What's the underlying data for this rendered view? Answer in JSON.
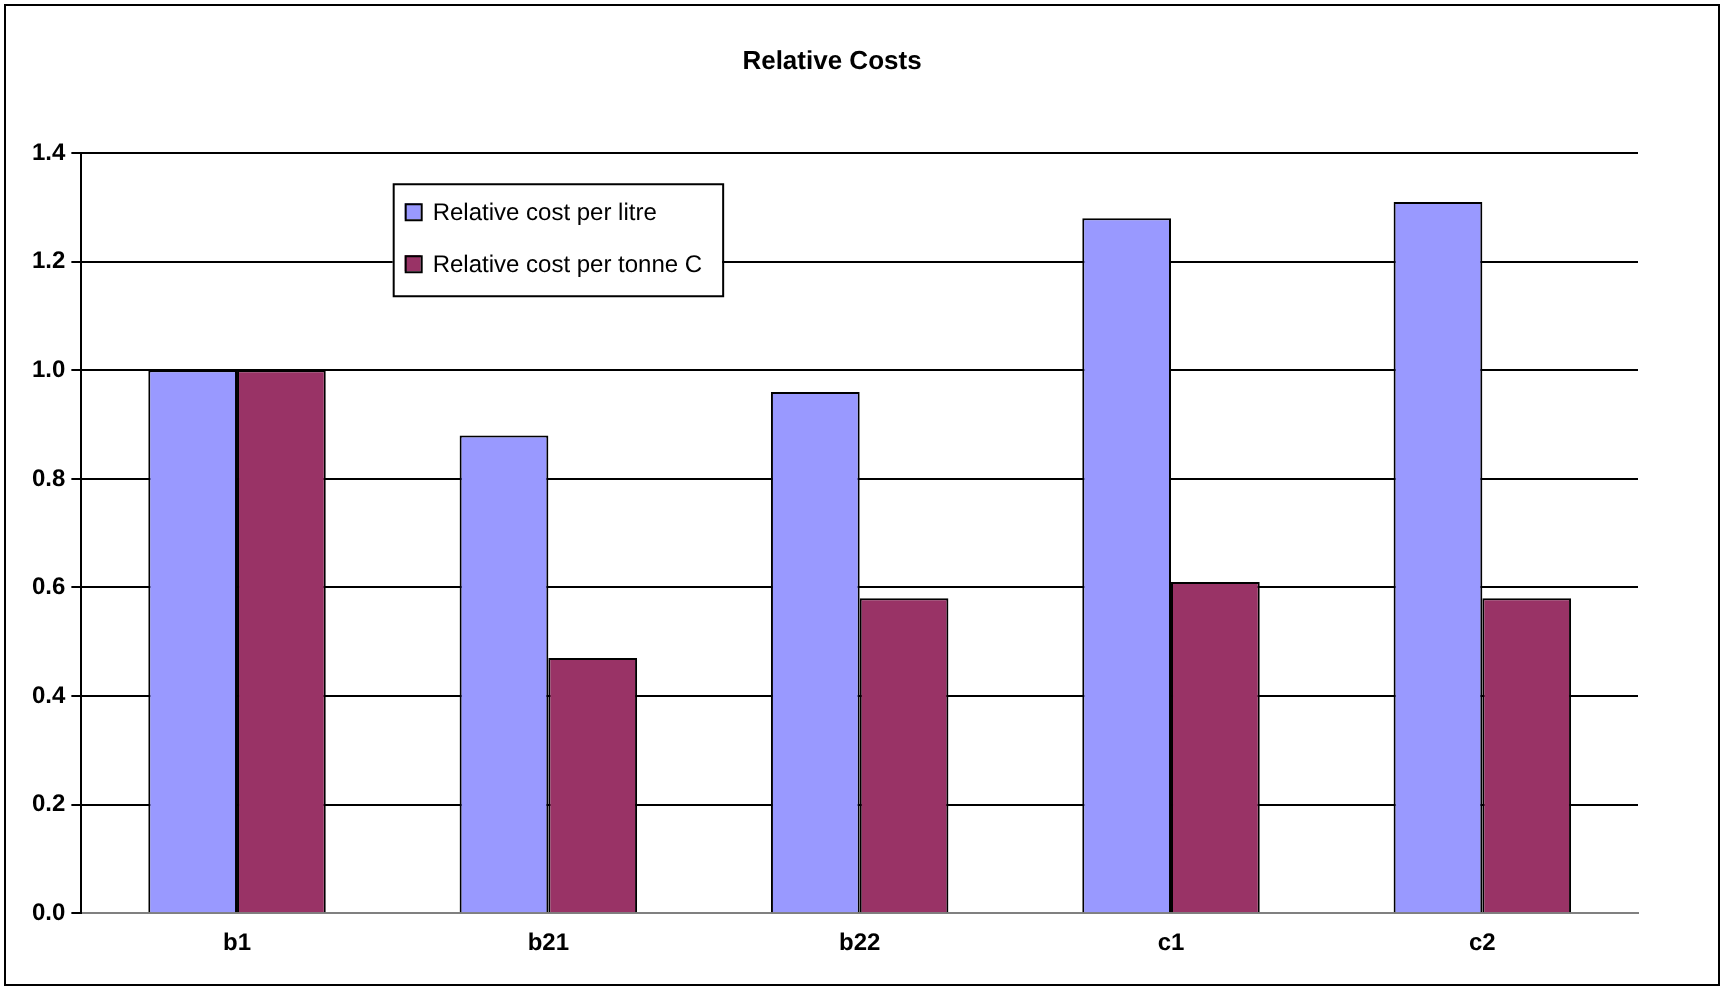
{
  "chart_data": {
    "type": "bar",
    "title": "Relative Costs",
    "categories": [
      "b1",
      "b21",
      "b22",
      "c1",
      "c2"
    ],
    "series": [
      {
        "name": "Relative cost per litre",
        "color": "#9999ff",
        "values": [
          1.0,
          0.88,
          0.96,
          1.28,
          1.31
        ]
      },
      {
        "name": "Relative cost per tonne C",
        "color": "#993366",
        "values": [
          1.0,
          0.47,
          0.58,
          0.61,
          0.58
        ]
      }
    ],
    "ylim": [
      0,
      1.4
    ],
    "yticks": [
      {
        "value": 0,
        "label": "0.0"
      },
      {
        "value": 0.2,
        "label": "0.2"
      },
      {
        "value": 0.4,
        "label": "0.4"
      },
      {
        "value": 0.6,
        "label": "0.6"
      },
      {
        "value": 0.8,
        "label": "0.8"
      },
      {
        "value": 1,
        "label": "1.0"
      },
      {
        "value": 1.2,
        "label": "1.2"
      },
      {
        "value": 1.4,
        "label": "1.4"
      }
    ],
    "grid": "y",
    "legend": "top left"
  }
}
